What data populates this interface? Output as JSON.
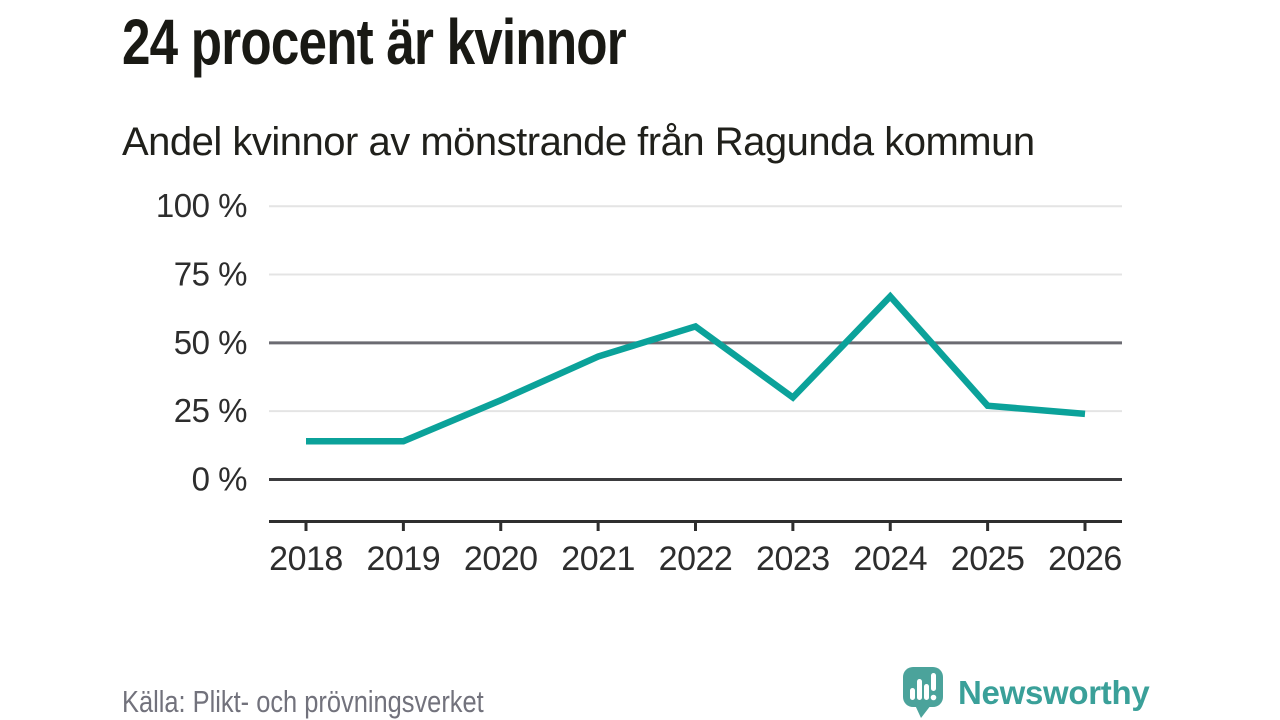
{
  "title": "24 procent är kvinnor",
  "subtitle": "Andel kvinnor av mönstrande från Ragunda kommun",
  "source": "Källa: Plikt- och prövningsverket",
  "brand": {
    "name": "Newsworthy",
    "icon": "speech-bubble-bar-chart-icon",
    "icon_color": "#4BA39B",
    "text_color": "#3AA099"
  },
  "colors": {
    "line": "#0BA29A",
    "grid_light": "#E4E4E4",
    "grid_mid": "#6B6B72",
    "grid_zero": "#3B3B3E",
    "axis": "#2E2E2E",
    "tick_label": "#2D2D2D"
  },
  "chart_data": {
    "type": "line",
    "title": "24 procent är kvinnor",
    "subtitle": "Andel kvinnor av mönstrande från Ragunda kommun",
    "categories": [
      "2018",
      "2019",
      "2020",
      "2021",
      "2022",
      "2023",
      "2024",
      "2025",
      "2026"
    ],
    "series": [
      {
        "name": "Andel kvinnor",
        "values": [
          14,
          14,
          29,
          45,
          56,
          30,
          67,
          27,
          24
        ]
      }
    ],
    "unit": "%",
    "xlabel": "",
    "ylabel": "",
    "ylim": [
      0,
      100
    ],
    "y_ticks": [
      0,
      25,
      50,
      75,
      100
    ],
    "y_tick_labels": [
      "0 %",
      "25 %",
      "50 %",
      "75 %",
      "100 %"
    ],
    "grid": "horizontal",
    "legend": "none"
  }
}
